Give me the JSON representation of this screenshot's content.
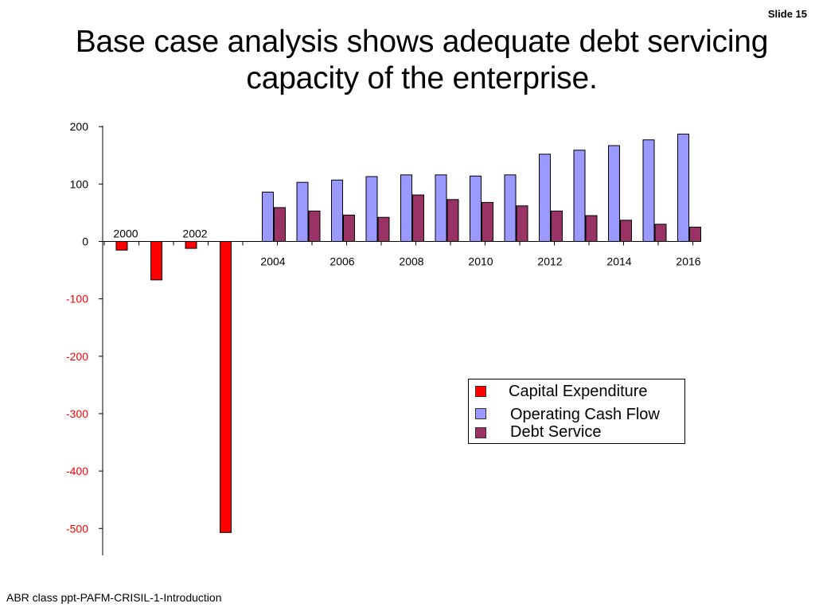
{
  "slide": {
    "number_label": "Slide 15"
  },
  "title": "Base case analysis shows adequate debt servicing capacity of the enterprise.",
  "footer": "ABR class ppt-PAFM-CRISIL-1-Introduction",
  "colors": {
    "capex": "#ff0000",
    "ocf": "#9999ff",
    "debt": "#993366",
    "negative_tick": "#ff0000"
  },
  "chart_data": {
    "type": "bar",
    "categories": [
      "2000",
      "2001",
      "2002",
      "2003",
      "2004",
      "2005",
      "2006",
      "2007",
      "2008",
      "2009",
      "2010",
      "2011",
      "2012",
      "2013",
      "2014",
      "2015",
      "2016"
    ],
    "tick_labels": {
      "above_axis": [
        "2000",
        "2002"
      ],
      "below_axis": [
        "2004",
        "2006",
        "2008",
        "2010",
        "2012",
        "2014",
        "2016"
      ]
    },
    "series": [
      {
        "name": "Capital Expenditure",
        "values": [
          -15,
          -67,
          -12,
          -507,
          0,
          0,
          0,
          0,
          0,
          0,
          0,
          0,
          0,
          0,
          0,
          0,
          0
        ]
      },
      {
        "name": "Operating Cash Flow",
        "values": [
          0,
          0,
          0,
          0,
          86,
          103,
          107,
          113,
          116,
          116,
          114,
          116,
          152,
          159,
          167,
          177,
          187
        ]
      },
      {
        "name": "Debt Service",
        "values": [
          0,
          0,
          0,
          0,
          59,
          53,
          46,
          42,
          81,
          73,
          68,
          62,
          53,
          45,
          37,
          30,
          25
        ]
      }
    ],
    "ylim": [
      -550,
      200
    ],
    "yticks": [
      200,
      100,
      0,
      -100,
      -200,
      -300,
      -400,
      -500
    ],
    "legend": [
      "Capital Expenditure",
      "Operating Cash Flow",
      "Debt Service"
    ],
    "legend_position": "lower-right",
    "grid": false,
    "xlabel": "",
    "ylabel": ""
  }
}
